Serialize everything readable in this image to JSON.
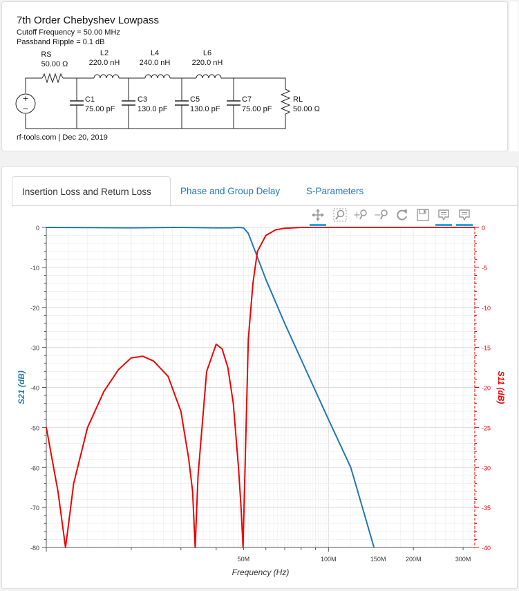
{
  "filter": {
    "title": "7th Order Chebyshev Lowpass",
    "cutoff": "Cutoff Frequency = 50.00 MHz",
    "ripple": "Passband Ripple = 0.1 dB",
    "footer": "rf-tools.com | Dec 20, 2019",
    "components": {
      "RS": {
        "name": "RS",
        "value": "50.00 Ω"
      },
      "L2": {
        "name": "L2",
        "value": "220.0 nH"
      },
      "L4": {
        "name": "L4",
        "value": "240.0 nH"
      },
      "L6": {
        "name": "L6",
        "value": "220.0 nH"
      },
      "C1": {
        "name": "C1",
        "value": "75.00 pF"
      },
      "C3": {
        "name": "C3",
        "value": "130.0 pF"
      },
      "C5": {
        "name": "C5",
        "value": "130.0 pF"
      },
      "C7": {
        "name": "C7",
        "value": "75.00 pF"
      },
      "RL": {
        "name": "RL",
        "value": "50.00 Ω"
      }
    }
  },
  "tabs": [
    {
      "label": "Insertion Loss and Return Loss",
      "active": true
    },
    {
      "label": "Phase and Group Delay",
      "active": false
    },
    {
      "label": "S-Parameters",
      "active": false
    }
  ],
  "toolbar": [
    {
      "icon": "pan-icon",
      "active": true
    },
    {
      "icon": "box-zoom-icon",
      "active": false
    },
    {
      "icon": "zoom-in-icon",
      "active": false
    },
    {
      "icon": "zoom-out-icon",
      "active": false
    },
    {
      "icon": "reset-icon",
      "active": false
    },
    {
      "icon": "save-icon",
      "active": false
    },
    {
      "icon": "hover-icon",
      "active": true
    },
    {
      "icon": "hover-icon",
      "active": true
    }
  ],
  "colors": {
    "s21": "#1f77b4",
    "s11": "#ee0000"
  },
  "chart_data": {
    "type": "line",
    "xlabel": "Frequency (Hz)",
    "ylabel": "S21 (dB)",
    "ylabel_right": "S11 (dB)",
    "x_scale": "log",
    "xlim": [
      10000000,
      330000000
    ],
    "ylim": [
      -80,
      0
    ],
    "ylim_right": [
      -40,
      0
    ],
    "x_tick_labels": [
      {
        "value": 50000000,
        "label": "50M"
      },
      {
        "value": 100000000,
        "label": "100M"
      },
      {
        "value": 150000000,
        "label": "150M"
      },
      {
        "value": 200000000,
        "label": "200M"
      },
      {
        "value": 300000000,
        "label": "300M"
      }
    ],
    "y_ticks": [
      0,
      -10,
      -20,
      -30,
      -40,
      -50,
      -60,
      -70,
      -80
    ],
    "y_ticks_right": [
      0,
      -5,
      -10,
      -15,
      -20,
      -25,
      -30,
      -35,
      -40
    ],
    "grid": true,
    "series": [
      {
        "name": "S21",
        "axis": "left",
        "x": [
          10000000,
          20000000,
          30000000,
          40000000,
          45000000,
          48000000,
          50000000,
          52000000,
          55000000,
          60000000,
          70000000,
          80000000,
          100000000,
          120000000,
          145000000
        ],
        "y": [
          0,
          -0.1,
          0,
          -0.1,
          -0.1,
          0,
          -0.1,
          -1.5,
          -6,
          -13,
          -24,
          -33,
          -48,
          -60,
          -80
        ]
      },
      {
        "name": "S11",
        "axis": "right",
        "x": [
          10000000,
          11000000,
          11700000,
          12000000,
          12500000,
          14000000,
          16000000,
          18000000,
          20000000,
          22000000,
          24000000,
          27000000,
          30000000,
          32000000,
          33000000,
          33700000,
          34500000,
          37000000,
          40000000,
          42000000,
          44000000,
          46000000,
          48000000,
          49000000,
          49800000,
          50700000,
          52000000,
          54000000,
          56000000,
          60000000,
          65000000,
          70000000,
          80000000,
          100000000,
          150000000,
          330000000
        ],
        "y": [
          -25,
          -33,
          -40,
          -37,
          -32,
          -25,
          -20.5,
          -17.8,
          -16.3,
          -16.1,
          -16.7,
          -18.6,
          -23,
          -29,
          -33,
          -40,
          -31,
          -18,
          -14.6,
          -15.2,
          -17.5,
          -22,
          -30,
          -35,
          -40,
          -29,
          -14,
          -7,
          -3,
          -1,
          -0.3,
          -0.1,
          0,
          0,
          0,
          0
        ]
      }
    ]
  }
}
